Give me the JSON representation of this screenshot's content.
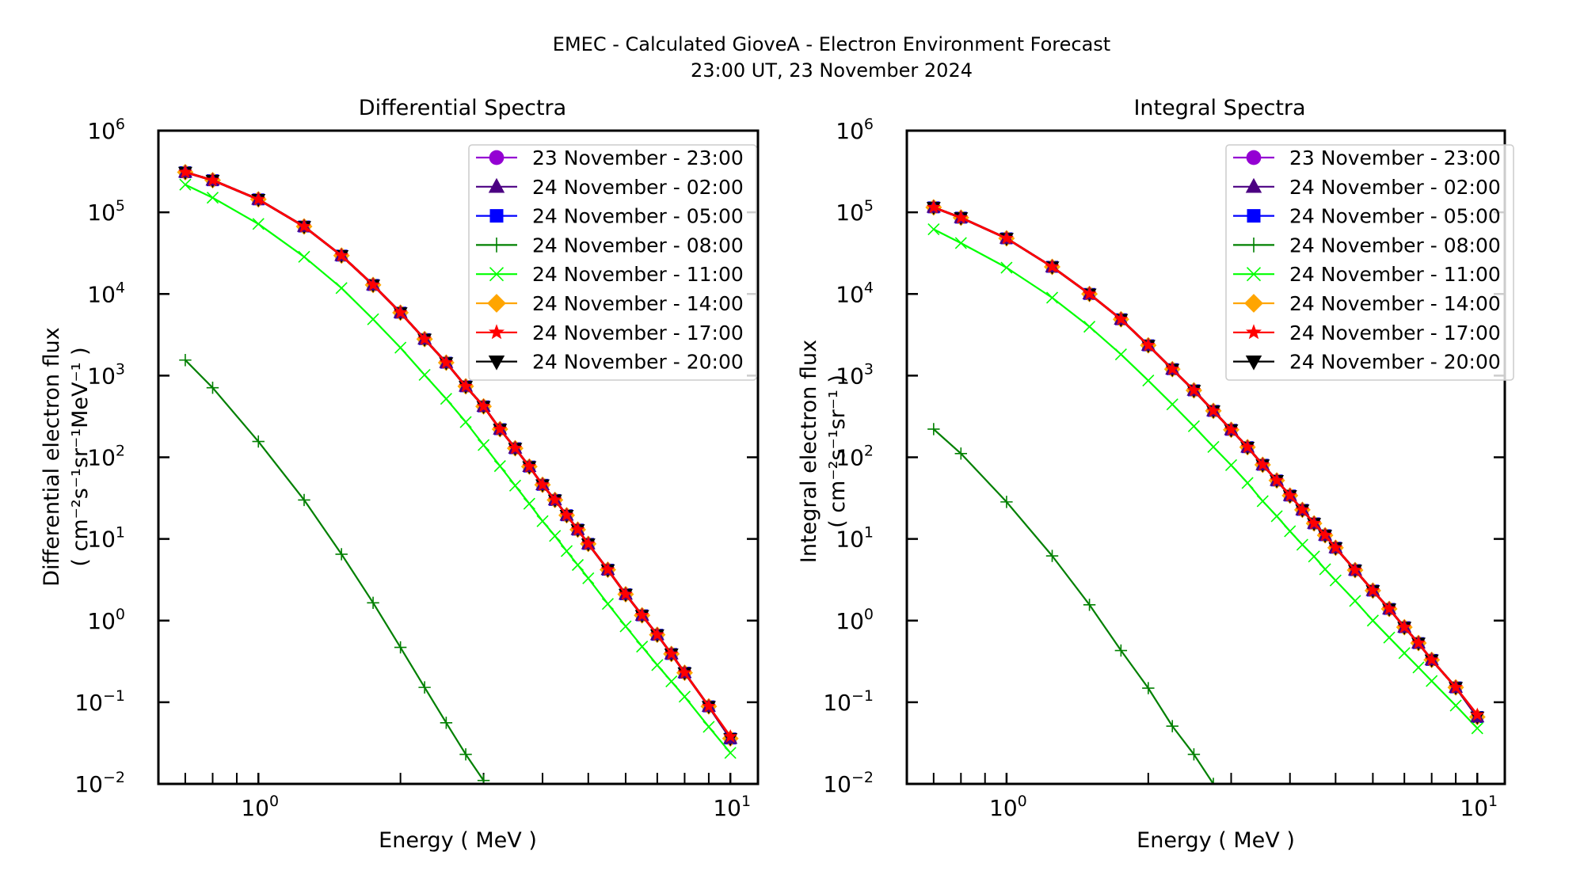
{
  "figure": {
    "title_line1": "EMEC - Calculated GioveA - Electron Environment Forecast",
    "title_line2": "23:00 UT, 23 November 2024"
  },
  "chart_data": [
    {
      "id": "differential",
      "type": "line",
      "title": "Differential Spectra",
      "xlabel": "Energy ( MeV )",
      "ylabel_line1": "Differential electron flux",
      "ylabel_line2": "( cm⁻²s⁻¹sr⁻¹MeV⁻¹ )",
      "xscale": "log",
      "yscale": "log",
      "xlim": [
        0.614,
        11.44
      ],
      "ylim": [
        0.01,
        1000000
      ],
      "x_major_ticks": [
        {
          "value": 1,
          "base": "10",
          "exp": "0"
        },
        {
          "value": 10,
          "base": "10",
          "exp": "1"
        }
      ],
      "y_major_ticks": [
        {
          "value": 0.01,
          "base": "10",
          "exp": "−2"
        },
        {
          "value": 0.1,
          "base": "10",
          "exp": "−1"
        },
        {
          "value": 1,
          "base": "10",
          "exp": "0"
        },
        {
          "value": 10,
          "base": "10",
          "exp": "1"
        },
        {
          "value": 100,
          "base": "10",
          "exp": "2"
        },
        {
          "value": 1000,
          "base": "10",
          "exp": "3"
        },
        {
          "value": 10000,
          "base": "10",
          "exp": "4"
        },
        {
          "value": 100000,
          "base": "10",
          "exp": "5"
        },
        {
          "value": 1000000,
          "base": "10",
          "exp": "6"
        }
      ],
      "x_minor_ticks": [
        0.7,
        0.8,
        0.9,
        2,
        3,
        4,
        5,
        6,
        7,
        8,
        9
      ],
      "tick_direction": "in",
      "grid": false,
      "legend_position": "top-right",
      "x": [
        0.7,
        0.8,
        1.0,
        1.25,
        1.5,
        1.75,
        2.0,
        2.25,
        2.5,
        2.75,
        3.0,
        3.25,
        3.5,
        3.75,
        4.0,
        4.25,
        4.5,
        4.75,
        5.0,
        5.5,
        6.0,
        6.5,
        7.0,
        7.5,
        8.0,
        9.0,
        10.0
      ],
      "series": [
        {
          "name": "23 November - 23:00",
          "color": "#9400d3",
          "marker": "circle",
          "values": [
            310000,
            247000,
            144000,
            67000,
            29500,
            12900,
            5900,
            2800,
            1440,
            740,
            420,
            221,
            129,
            77,
            46,
            30,
            19.5,
            13,
            8.7,
            4.2,
            2.1,
            1.16,
            0.67,
            0.39,
            0.23,
            0.089,
            0.036
          ]
        },
        {
          "name": "24 November - 02:00",
          "color": "#4b0082",
          "marker": "triangle-up",
          "values": [
            310000,
            247000,
            144000,
            67000,
            29500,
            12900,
            5900,
            2800,
            1440,
            740,
            420,
            221,
            129,
            77,
            46,
            30,
            19.5,
            13,
            8.7,
            4.2,
            2.1,
            1.16,
            0.67,
            0.39,
            0.23,
            0.089,
            0.036
          ]
        },
        {
          "name": "24 November - 05:00",
          "color": "#0000ff",
          "marker": "square",
          "values": [
            310000,
            247000,
            144000,
            67000,
            29500,
            12900,
            5900,
            2800,
            1440,
            740,
            420,
            221,
            129,
            77,
            46,
            30,
            19.5,
            13,
            8.7,
            4.2,
            2.1,
            1.16,
            0.67,
            0.39,
            0.23,
            0.089,
            0.036
          ]
        },
        {
          "name": "24 November - 08:00",
          "color": "#008000",
          "marker": "plus",
          "values": [
            1550,
            710,
            156,
            30,
            6.5,
            1.65,
            0.47,
            0.152,
            0.056,
            0.023,
            0.011
          ]
        },
        {
          "name": "24 November - 11:00",
          "color": "#00ff00",
          "marker": "x",
          "values": [
            218000,
            151000,
            72000,
            28500,
            11800,
            4900,
            2200,
            1020,
            520,
            270,
            141,
            78,
            45,
            27,
            16.5,
            10.9,
            7.1,
            4.8,
            3.3,
            1.6,
            0.85,
            0.48,
            0.285,
            0.18,
            0.117,
            0.05,
            0.024
          ]
        },
        {
          "name": "24 November - 14:00",
          "color": "#ffa500",
          "marker": "diamond",
          "values": [
            310000,
            247000,
            144000,
            67000,
            29500,
            12900,
            5900,
            2800,
            1440,
            740,
            420,
            221,
            129,
            77,
            46,
            30,
            19.5,
            13,
            8.7,
            4.2,
            2.1,
            1.16,
            0.67,
            0.39,
            0.23,
            0.089,
            0.036
          ]
        },
        {
          "name": "24 November - 17:00",
          "color": "#ff0000",
          "marker": "star",
          "values": [
            310000,
            247000,
            144000,
            67000,
            29500,
            12900,
            5900,
            2800,
            1440,
            740,
            420,
            221,
            129,
            77,
            46,
            30,
            19.5,
            13,
            8.7,
            4.2,
            2.1,
            1.16,
            0.67,
            0.39,
            0.23,
            0.089,
            0.038
          ]
        },
        {
          "name": "24 November - 20:00",
          "color": "#000000",
          "marker": "triangle-down",
          "values": [
            310000,
            247000,
            144000,
            67000,
            29500,
            12900,
            5900,
            2800,
            1440,
            740,
            420,
            221,
            129,
            77,
            46,
            30,
            19.5,
            13,
            8.7,
            4.2,
            2.1,
            1.16,
            0.67,
            0.39,
            0.23,
            0.089,
            0.036
          ]
        }
      ]
    },
    {
      "id": "integral",
      "type": "line",
      "title": "Integral Spectra",
      "xlabel": "Energy ( MeV )",
      "ylabel_line1": "Integral electron flux",
      "ylabel_line2": "( cm⁻²s⁻¹sr⁻¹ )",
      "xscale": "log",
      "yscale": "log",
      "xlim": [
        0.614,
        11.44
      ],
      "ylim": [
        0.01,
        1000000
      ],
      "x_major_ticks": [
        {
          "value": 1,
          "base": "10",
          "exp": "0"
        },
        {
          "value": 10,
          "base": "10",
          "exp": "1"
        }
      ],
      "y_major_ticks": [
        {
          "value": 0.01,
          "base": "10",
          "exp": "−2"
        },
        {
          "value": 0.1,
          "base": "10",
          "exp": "−1"
        },
        {
          "value": 1,
          "base": "10",
          "exp": "0"
        },
        {
          "value": 10,
          "base": "10",
          "exp": "1"
        },
        {
          "value": 100,
          "base": "10",
          "exp": "2"
        },
        {
          "value": 1000,
          "base": "10",
          "exp": "3"
        },
        {
          "value": 10000,
          "base": "10",
          "exp": "4"
        },
        {
          "value": 100000,
          "base": "10",
          "exp": "5"
        },
        {
          "value": 1000000,
          "base": "10",
          "exp": "6"
        }
      ],
      "x_minor_ticks": [
        0.7,
        0.8,
        0.9,
        2,
        3,
        4,
        5,
        6,
        7,
        8,
        9
      ],
      "tick_direction": "in",
      "grid": false,
      "legend_position": "top-right",
      "x": [
        0.7,
        0.8,
        1.0,
        1.25,
        1.5,
        1.75,
        2.0,
        2.25,
        2.5,
        2.75,
        3.0,
        3.25,
        3.5,
        3.75,
        4.0,
        4.25,
        4.5,
        4.75,
        5.0,
        5.5,
        6.0,
        6.5,
        7.0,
        7.5,
        8.0,
        9.0,
        10.0
      ],
      "series": [
        {
          "name": "23 November - 23:00",
          "color": "#9400d3",
          "marker": "circle",
          "values": [
            115000,
            86000,
            48000,
            21500,
            10000,
            4900,
            2350,
            1200,
            660,
            370,
            217,
            133,
            81,
            52,
            34,
            22.7,
            15.5,
            11.1,
            7.8,
            4.15,
            2.33,
            1.39,
            0.83,
            0.53,
            0.33,
            0.152,
            0.066
          ]
        },
        {
          "name": "24 November - 02:00",
          "color": "#4b0082",
          "marker": "triangle-up",
          "values": [
            115000,
            86000,
            48000,
            21500,
            10000,
            4900,
            2350,
            1200,
            660,
            370,
            217,
            133,
            81,
            52,
            34,
            22.7,
            15.5,
            11.1,
            7.8,
            4.15,
            2.33,
            1.39,
            0.83,
            0.53,
            0.33,
            0.152,
            0.066
          ]
        },
        {
          "name": "24 November - 05:00",
          "color": "#0000ff",
          "marker": "square",
          "values": [
            115000,
            86000,
            48000,
            21500,
            10000,
            4900,
            2350,
            1200,
            660,
            370,
            217,
            133,
            81,
            52,
            34,
            22.7,
            15.5,
            11.1,
            7.8,
            4.15,
            2.33,
            1.39,
            0.83,
            0.53,
            0.33,
            0.152,
            0.066
          ]
        },
        {
          "name": "24 November - 08:00",
          "color": "#008000",
          "marker": "plus",
          "values": [
            221,
            111,
            28.4,
            6.2,
            1.56,
            0.43,
            0.149,
            0.051,
            0.023,
            0.01
          ]
        },
        {
          "name": "24 November - 11:00",
          "color": "#00ff00",
          "marker": "x",
          "values": [
            62000,
            42000,
            21000,
            9000,
            3970,
            1820,
            870,
            445,
            240,
            134,
            80,
            48.5,
            29,
            19,
            12.4,
            8.5,
            6.1,
            4.25,
            3.1,
            1.74,
            1.0,
            0.62,
            0.4,
            0.267,
            0.182,
            0.091,
            0.048
          ]
        },
        {
          "name": "24 November - 14:00",
          "color": "#ffa500",
          "marker": "diamond",
          "values": [
            115000,
            86000,
            48000,
            21500,
            10000,
            4900,
            2350,
            1200,
            660,
            370,
            217,
            133,
            81,
            52,
            34,
            22.7,
            15.5,
            11.1,
            7.8,
            4.15,
            2.33,
            1.39,
            0.83,
            0.53,
            0.33,
            0.152,
            0.066
          ]
        },
        {
          "name": "24 November - 17:00",
          "color": "#ff0000",
          "marker": "star",
          "values": [
            115000,
            86000,
            48000,
            21500,
            10000,
            4900,
            2350,
            1200,
            660,
            370,
            217,
            133,
            81,
            52,
            34,
            22.7,
            15.5,
            11.1,
            7.8,
            4.15,
            2.33,
            1.39,
            0.83,
            0.53,
            0.33,
            0.152,
            0.07
          ]
        },
        {
          "name": "24 November - 20:00",
          "color": "#000000",
          "marker": "triangle-down",
          "values": [
            115000,
            86000,
            48000,
            21500,
            10000,
            4900,
            2350,
            1200,
            660,
            370,
            217,
            133,
            81,
            52,
            34,
            22.7,
            15.5,
            11.1,
            7.8,
            4.15,
            2.33,
            1.39,
            0.83,
            0.53,
            0.33,
            0.152,
            0.066
          ]
        }
      ]
    }
  ]
}
